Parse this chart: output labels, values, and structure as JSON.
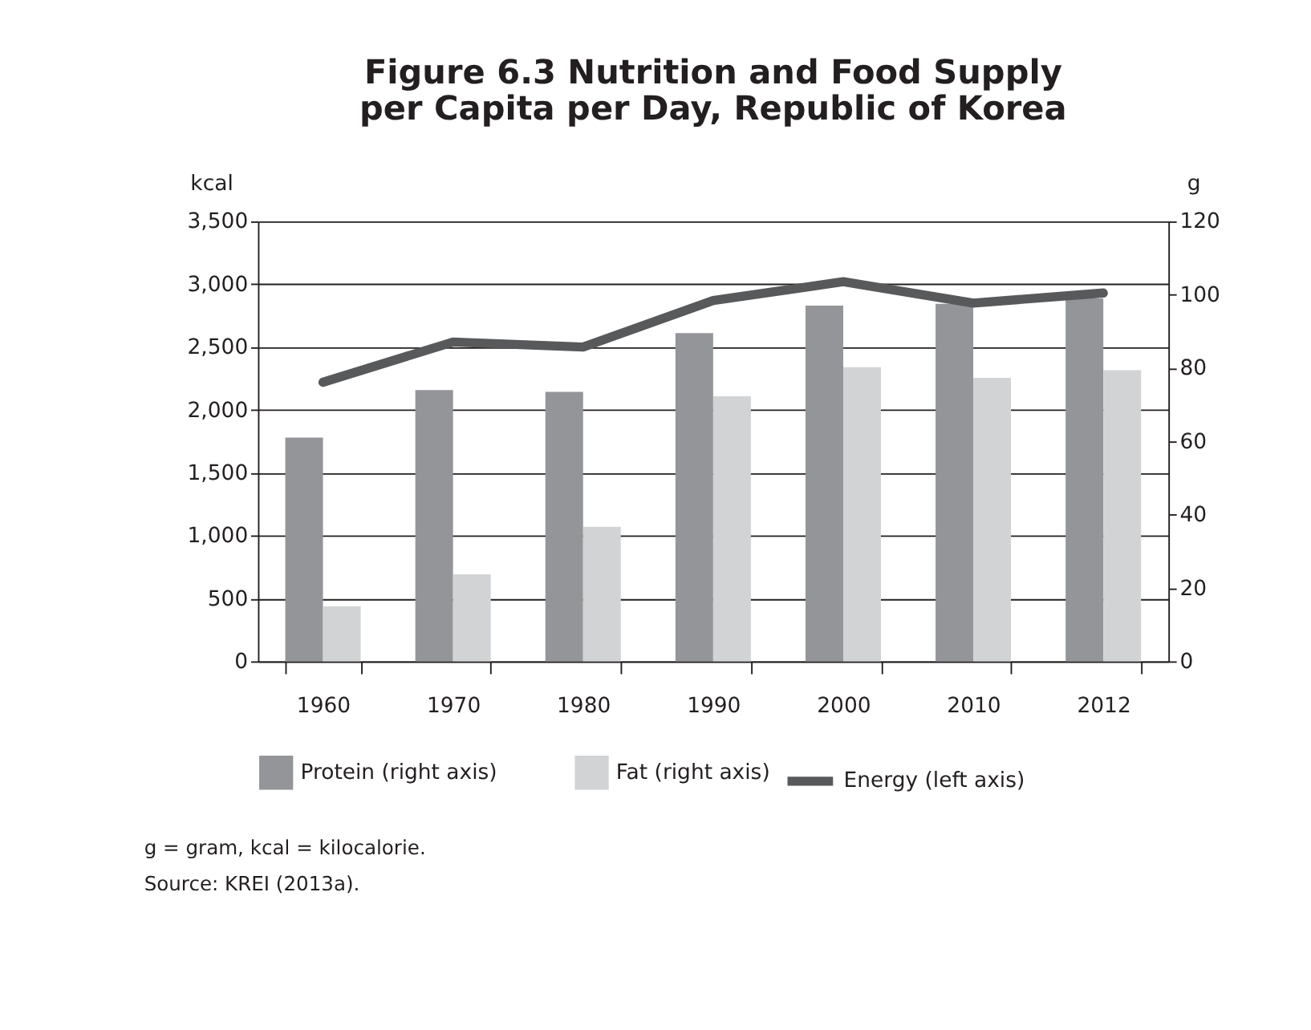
{
  "chart_data": {
    "type": "bar",
    "title": [
      "Figure 6.3  Nutrition and Food Supply",
      "per Capita per Day, Republic of Korea"
    ],
    "categories": [
      "1960",
      "1970",
      "1980",
      "1990",
      "2000",
      "2010",
      "2012"
    ],
    "series": [
      {
        "name": "Protein (right axis)",
        "axis": "y2",
        "color": "#939598",
        "values": [
          61,
          74,
          73.5,
          89.5,
          97,
          97.5,
          99
        ]
      },
      {
        "name": "Fat (right axis)",
        "axis": "y2",
        "color": "#d1d3d4",
        "values": [
          15,
          23.7,
          36.7,
          72.3,
          80.2,
          77.3,
          79.4
        ]
      },
      {
        "name": "Energy (left axis)",
        "type": "line",
        "axis": "y",
        "color": "#58595b",
        "values": [
          2220,
          2540,
          2500,
          2870,
          3020,
          2850,
          2930
        ]
      }
    ],
    "ylabel": "kcal",
    "y2label": "g",
    "ylim": [
      0,
      3500
    ],
    "yticks": [
      {
        "value": 0,
        "label": "0"
      },
      {
        "value": 500,
        "label": "500"
      },
      {
        "value": 1000,
        "label": "1,000"
      },
      {
        "value": 1500,
        "label": "1,500"
      },
      {
        "value": 2000,
        "label": "2,000"
      },
      {
        "value": 2500,
        "label": "2,500"
      },
      {
        "value": 3000,
        "label": "3,000"
      },
      {
        "value": 3500,
        "label": "3,500"
      }
    ],
    "y2lim": [
      0,
      120
    ],
    "y2ticks": [
      0,
      20,
      40,
      60,
      80,
      100,
      120
    ],
    "grid": "y",
    "legend": "bottom",
    "annotations": [
      "g = gram, kcal = kilocalorie.",
      "Source: KREI (2013a)."
    ]
  }
}
